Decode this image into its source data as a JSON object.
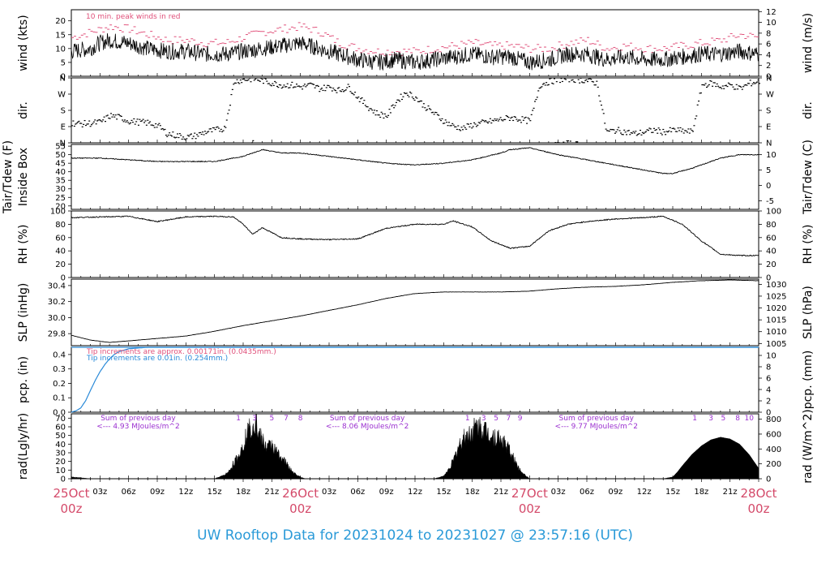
{
  "title": "UW Rooftop Data for 20231024  to  20231027 @ 23:57:16  (UTC)",
  "colors": {
    "peak": "#e0507a",
    "pcp_in": "#2a8ad8",
    "pcp_mm": "#e0507a",
    "rad_label": "#9b30d0",
    "title": "#2a9ad8",
    "date": "#d44a6a"
  },
  "x_axis": {
    "hours_total": 72,
    "hour_labels": [
      "03z",
      "06z",
      "09z",
      "12z",
      "15z",
      "18z",
      "21z",
      "03z",
      "06z",
      "09z",
      "12z",
      "15z",
      "18z",
      "21z",
      "03z",
      "06z",
      "09z",
      "12z",
      "15z",
      "18z",
      "21z"
    ],
    "hour_label_hours": [
      3,
      6,
      9,
      12,
      15,
      18,
      21,
      27,
      30,
      33,
      36,
      39,
      42,
      45,
      51,
      54,
      57,
      60,
      63,
      66,
      69
    ],
    "date_labels": [
      {
        "day": "25Oct",
        "hour": "00z",
        "at": 0
      },
      {
        "day": "26Oct",
        "hour": "00z",
        "at": 24
      },
      {
        "day": "27Oct",
        "hour": "00z",
        "at": 48
      },
      {
        "day": "28Oct",
        "hour": "00z",
        "at": 72
      }
    ]
  },
  "chart_data": [
    {
      "id": "wind",
      "type": "line",
      "ylabel_left": "wind (kts)",
      "ylabel_right": "wind (m/s)",
      "ylim": [
        0,
        24
      ],
      "ticks_left": [
        "0",
        "5",
        "10",
        "15",
        "20"
      ],
      "ticks_left_values": [
        0,
        5,
        10,
        15,
        20
      ],
      "ticks_right": [
        "0",
        "2",
        "4",
        "6",
        "8",
        "10",
        "12"
      ],
      "ticks_right_values": [
        0,
        3.888,
        7.776,
        11.664,
        15.552,
        19.44,
        23.328
      ],
      "annotation": "10 min. peak winds in red",
      "series": [
        {
          "name": "mean",
          "x": [
            0,
            2,
            3,
            4,
            6,
            8,
            10,
            12,
            14,
            16,
            18,
            20,
            22,
            24,
            26,
            28,
            30,
            32,
            34,
            36,
            38,
            40,
            42,
            44,
            46,
            48,
            50,
            52,
            54,
            56,
            58,
            60,
            62,
            64,
            66,
            68,
            70,
            72
          ],
          "y": [
            9,
            10,
            12,
            13,
            12,
            10,
            9,
            9,
            8,
            8,
            9,
            10,
            11,
            12,
            10,
            8,
            6,
            5,
            6,
            5,
            6,
            7,
            8,
            7,
            7,
            5,
            6,
            8,
            8,
            6,
            7,
            6,
            6,
            7,
            8,
            8,
            9,
            8
          ]
        },
        {
          "name": "peak",
          "x": [
            0,
            2,
            3,
            4,
            6,
            8,
            10,
            12,
            14,
            16,
            18,
            20,
            22,
            24,
            26,
            28,
            30,
            32,
            34,
            36,
            38,
            40,
            42,
            44,
            46,
            48,
            50,
            52,
            54,
            56,
            58,
            60,
            62,
            64,
            66,
            68,
            70,
            72
          ],
          "y": [
            14,
            16,
            17,
            18,
            17,
            15,
            13,
            13,
            12,
            12,
            14,
            16,
            17,
            18,
            16,
            12,
            10,
            9,
            9,
            9,
            10,
            11,
            12,
            11,
            11,
            10,
            10,
            12,
            13,
            10,
            11,
            10,
            10,
            11,
            12,
            13,
            15,
            14
          ]
        }
      ]
    },
    {
      "id": "dir",
      "type": "scatter",
      "ylabel_left": "dir.",
      "ylabel_right": "dir.",
      "ticks": [
        "N",
        "E",
        "S",
        "W",
        "N"
      ],
      "ticks_values": [
        0,
        90,
        180,
        270,
        360
      ],
      "x": [
        0,
        1,
        2,
        3,
        4,
        5,
        6,
        7,
        8,
        9,
        10,
        11,
        12,
        13,
        14,
        15,
        16,
        17,
        18,
        19,
        20,
        21,
        22,
        23,
        24,
        25,
        26,
        27,
        28,
        29,
        30,
        31,
        32,
        33,
        34,
        35,
        36,
        37,
        38,
        39,
        40,
        41,
        42,
        43,
        44,
        45,
        46,
        47,
        48,
        49,
        50,
        51,
        52,
        53,
        54,
        55,
        56,
        57,
        58,
        59,
        60,
        61,
        62,
        63,
        64,
        65,
        66,
        67,
        68,
        69,
        70,
        71,
        72
      ],
      "y": [
        110,
        105,
        108,
        115,
        150,
        140,
        120,
        115,
        110,
        95,
        50,
        40,
        30,
        40,
        60,
        70,
        80,
        340,
        350,
        355,
        345,
        330,
        320,
        320,
        310,
        320,
        300,
        310,
        290,
        310,
        250,
        200,
        160,
        150,
        230,
        280,
        250,
        200,
        160,
        120,
        90,
        80,
        100,
        110,
        120,
        130,
        140,
        130,
        120,
        320,
        340,
        350,
        355,
        350,
        345,
        330,
        60,
        70,
        60,
        50,
        60,
        70,
        60,
        70,
        65,
        60,
        320,
        330,
        310,
        320,
        300,
        330,
        340
      ]
    },
    {
      "id": "temp",
      "type": "line",
      "ylabel_left": "Tair/Tdew (F)\nInside Box",
      "ylabel_right": "Tair/Tdew (C)",
      "ylim": [
        18,
        56
      ],
      "ticks_left": [
        "20",
        "25",
        "30",
        "35",
        "40",
        "45",
        "50",
        "55"
      ],
      "ticks_left_values": [
        20,
        25,
        30,
        35,
        40,
        45,
        50,
        55
      ],
      "ticks_right": [
        "-5",
        "0",
        "5",
        "10"
      ],
      "ticks_right_values": [
        23,
        32,
        41,
        50
      ],
      "x": [
        0,
        3,
        6,
        9,
        12,
        15,
        18,
        19,
        20,
        22,
        24,
        27,
        30,
        33,
        36,
        39,
        42,
        45,
        46,
        48,
        51,
        54,
        57,
        60,
        61,
        62,
        63,
        65,
        68,
        70,
        72
      ],
      "y": [
        48,
        48,
        47,
        46,
        46,
        46,
        49,
        51,
        53,
        51,
        51,
        49,
        47,
        45,
        44,
        45,
        47,
        51,
        53,
        54,
        50,
        47,
        44,
        41,
        40,
        39,
        39,
        42,
        48,
        50,
        50
      ]
    },
    {
      "id": "rh",
      "type": "line",
      "ylabel_left": "RH (%)",
      "ylabel_right": "RH (%)",
      "ylim": [
        0,
        100
      ],
      "ticks": [
        "0",
        "20",
        "40",
        "60",
        "80",
        "100"
      ],
      "ticks_values": [
        0,
        20,
        40,
        60,
        80,
        100
      ],
      "x": [
        0,
        3,
        6,
        9,
        12,
        15,
        17,
        18,
        19,
        20,
        22,
        24,
        27,
        30,
        33,
        36,
        39,
        40,
        42,
        44,
        46,
        48,
        50,
        52,
        54,
        57,
        60,
        62,
        64,
        66,
        68,
        70,
        72
      ],
      "y": [
        90,
        91,
        92,
        84,
        91,
        92,
        91,
        80,
        65,
        75,
        60,
        58,
        57,
        58,
        74,
        80,
        80,
        85,
        76,
        55,
        44,
        47,
        70,
        80,
        84,
        88,
        90,
        92,
        80,
        55,
        35,
        33,
        33
      ]
    },
    {
      "id": "slp",
      "type": "line",
      "ylabel_left": "SLP (inHg)",
      "ylabel_right": "SLP (hPa)",
      "ylim": [
        29.65,
        30.48
      ],
      "ticks_left": [
        "29.8",
        "30.0",
        "30.2",
        "30.4"
      ],
      "ticks_left_values": [
        29.8,
        30.0,
        30.2,
        30.4
      ],
      "ticks_right": [
        "1005",
        "1010",
        "1015",
        "1020",
        "1025",
        "1030"
      ],
      "ticks_right_values": [
        29.677,
        29.825,
        29.972,
        30.12,
        30.268,
        30.415
      ],
      "x": [
        0,
        2,
        4,
        6,
        9,
        12,
        15,
        18,
        21,
        24,
        27,
        30,
        33,
        36,
        39,
        42,
        45,
        48,
        51,
        54,
        57,
        60,
        63,
        66,
        69,
        72
      ],
      "y": [
        29.78,
        29.72,
        29.69,
        29.71,
        29.74,
        29.77,
        29.83,
        29.9,
        29.96,
        30.02,
        30.09,
        30.16,
        30.24,
        30.3,
        30.32,
        30.32,
        30.32,
        30.33,
        30.36,
        30.38,
        30.39,
        30.41,
        30.44,
        30.46,
        30.47,
        30.46
      ]
    },
    {
      "id": "pcp",
      "type": "line",
      "ylabel_left": "pcp. (in)",
      "ylabel_right": "pcp. (mm)",
      "ylim": [
        0,
        0.45
      ],
      "ticks_left": [
        "0.0",
        "0.1",
        "0.2",
        "0.3",
        "0.4"
      ],
      "ticks_left_values": [
        0,
        0.1,
        0.2,
        0.3,
        0.4
      ],
      "ticks_right": [
        "0",
        "2",
        "4",
        "6",
        "8",
        "10"
      ],
      "ticks_right_values": [
        0,
        0.0787,
        0.1575,
        0.2362,
        0.315,
        0.3937
      ],
      "note_pink": "Tip increments are approx. 0.00171in. (0.0435mm.)",
      "note_blue": "Tip increments are 0.01in. (0.254mm.)",
      "series": [
        {
          "name": "Tip increments are 0.01in. (0.254mm.)",
          "x": [
            0,
            0.5,
            1,
            1.5,
            2,
            2.5,
            3,
            3.5,
            4,
            4.5,
            5,
            6,
            8,
            12,
            24,
            48,
            72
          ],
          "y": [
            0,
            0.01,
            0.03,
            0.08,
            0.15,
            0.22,
            0.28,
            0.33,
            0.37,
            0.4,
            0.42,
            0.44,
            0.45,
            0.45,
            0.45,
            0.45,
            0.45
          ]
        },
        {
          "name": "Tip increments are approx. 0.00171in. (0.0435mm.)",
          "x": [
            0,
            43.9,
            44,
            72
          ],
          "y": [
            0.45,
            0.45,
            0.46,
            0.46
          ]
        }
      ]
    },
    {
      "id": "rad",
      "type": "area",
      "ylabel_left": "rad(Lgly/hr)",
      "ylabel_right": "rad (W/m^2)",
      "ylim": [
        0,
        75
      ],
      "ticks_left": [
        "0",
        "10",
        "20",
        "30",
        "40",
        "50",
        "60",
        "70"
      ],
      "ticks_left_values": [
        0,
        10,
        20,
        30,
        40,
        50,
        60,
        70
      ],
      "ticks_right": [
        "0",
        "200",
        "400",
        "600",
        "800"
      ],
      "ticks_right_values": [
        0,
        17.2,
        34.4,
        51.6,
        68.8
      ],
      "day_labels": [
        {
          "text": "Sum of previous day",
          "sub": "<--- 4.93 MJoules/m^2",
          "at": 7
        },
        {
          "text": "Sum of previous day",
          "sub": "<--- 8.06 MJoules/m^2",
          "at": 31
        },
        {
          "text": "Sum of previous day",
          "sub": "<--- 9.77 MJoules/m^2",
          "at": 55
        }
      ],
      "hour_marks": [
        {
          "text": "1",
          "at": 17.5
        },
        {
          "text": "3",
          "at": 19.2
        },
        {
          "text": "5",
          "at": 21
        },
        {
          "text": "7",
          "at": 22.5
        },
        {
          "text": "8",
          "at": 24
        },
        {
          "text": "1",
          "at": 41.5
        },
        {
          "text": "3",
          "at": 43.2
        },
        {
          "text": "5",
          "at": 44.5
        },
        {
          "text": "7",
          "at": 45.8
        },
        {
          "text": "9",
          "at": 47
        },
        {
          "text": "1",
          "at": 65.3
        },
        {
          "text": "3",
          "at": 67
        },
        {
          "text": "5",
          "at": 68.3
        },
        {
          "text": "8",
          "at": 69.8
        },
        {
          "text": "10",
          "at": 71
        }
      ],
      "x": [
        0,
        1,
        2,
        14,
        15,
        16,
        16.5,
        17,
        17.5,
        18,
        18.5,
        19,
        19.3,
        19.6,
        20,
        20.5,
        21,
        21.5,
        22,
        22.5,
        23,
        23.5,
        24,
        24.5,
        25,
        38,
        39,
        39.5,
        40,
        40.5,
        41,
        41.5,
        42,
        42.5,
        43,
        43.5,
        44,
        44.5,
        45,
        45.5,
        46,
        46.5,
        47,
        47.5,
        48,
        49,
        62,
        63,
        63.5,
        64,
        65,
        66,
        67,
        68,
        69,
        70,
        71,
        72
      ],
      "y": [
        2,
        1,
        0,
        0,
        0,
        4,
        8,
        18,
        25,
        40,
        55,
        62,
        70,
        50,
        45,
        35,
        40,
        30,
        25,
        18,
        10,
        5,
        2,
        0,
        0,
        0,
        3,
        10,
        20,
        35,
        45,
        50,
        55,
        60,
        58,
        55,
        50,
        48,
        45,
        40,
        30,
        20,
        10,
        5,
        0,
        0,
        0,
        2,
        8,
        15,
        28,
        38,
        45,
        48,
        46,
        40,
        28,
        12
      ]
    }
  ]
}
